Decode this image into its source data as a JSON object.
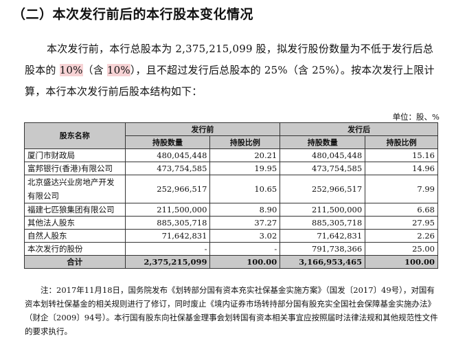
{
  "heading": "（二）本次发行前后的本行股本变化情况",
  "paragraph": {
    "p1": "本次发行前，本行总股本为 2,375,215,099 股，拟发行股份数量为不低于发行后总股本的 ",
    "h1": "10%",
    "p2": "（含 ",
    "h2": "10%",
    "p3": "），且不超过发行后总股本的 25%（含 25%）。按本次发行上限计算，本行本次发行前后股本结构如下："
  },
  "unit": "单位：股、%",
  "table": {
    "col_name": "股东名称",
    "group_before": "发行前",
    "group_after": "发行后",
    "col_shares": "持股数量",
    "col_ratio": "持股比例",
    "rows": [
      {
        "name": "厦门市财政局",
        "b_shares": "480,045,448",
        "b_ratio": "20.21",
        "a_shares": "480,045,448",
        "a_ratio": "15.16"
      },
      {
        "name": "富邦银行(香港)有限公司",
        "b_shares": "473,754,585",
        "b_ratio": "19.95",
        "a_shares": "473,754,585",
        "a_ratio": "14.96"
      },
      {
        "name": "北京盛达兴业房地产开发有限公司",
        "b_shares": "252,966,517",
        "b_ratio": "10.65",
        "a_shares": "252,966,517",
        "a_ratio": "7.99"
      },
      {
        "name": "福建七匹狼集团有限公司",
        "b_shares": "211,500,000",
        "b_ratio": "8.90",
        "a_shares": "211,500,000",
        "a_ratio": "6.68"
      },
      {
        "name": "其他法人股东",
        "b_shares": "885,305,718",
        "b_ratio": "37.27",
        "a_shares": "885,305,718",
        "a_ratio": "27.95"
      },
      {
        "name": "自然人股东",
        "b_shares": "71,642,831",
        "b_ratio": "3.02",
        "a_shares": "71,642,831",
        "a_ratio": "2.26"
      },
      {
        "name": "本次发行的股份",
        "b_shares": "-",
        "b_ratio": "-",
        "a_shares": "791,738,366",
        "a_ratio": "25.00"
      }
    ],
    "total": {
      "name": "合计",
      "b_shares": "2,375,215,099",
      "b_ratio": "100.00",
      "a_shares": "3,166,953,465",
      "a_ratio": "100.00"
    }
  },
  "note": "注：2017年11月18日，国务院发布《划转部分国有资本充实社保基金实施方案》（国发〔2017〕49号），对国有资本划转社保基金的相关规则进行了修订，同时废止《境内证券市场转持部分国有股充实全国社会保障基金实施办法》（财企〔2009〕94号）。本行国有股东向社保基金理事会划转国有资本相关事宜应按照届时法律法规和其他规范性文件的要求执行。"
}
